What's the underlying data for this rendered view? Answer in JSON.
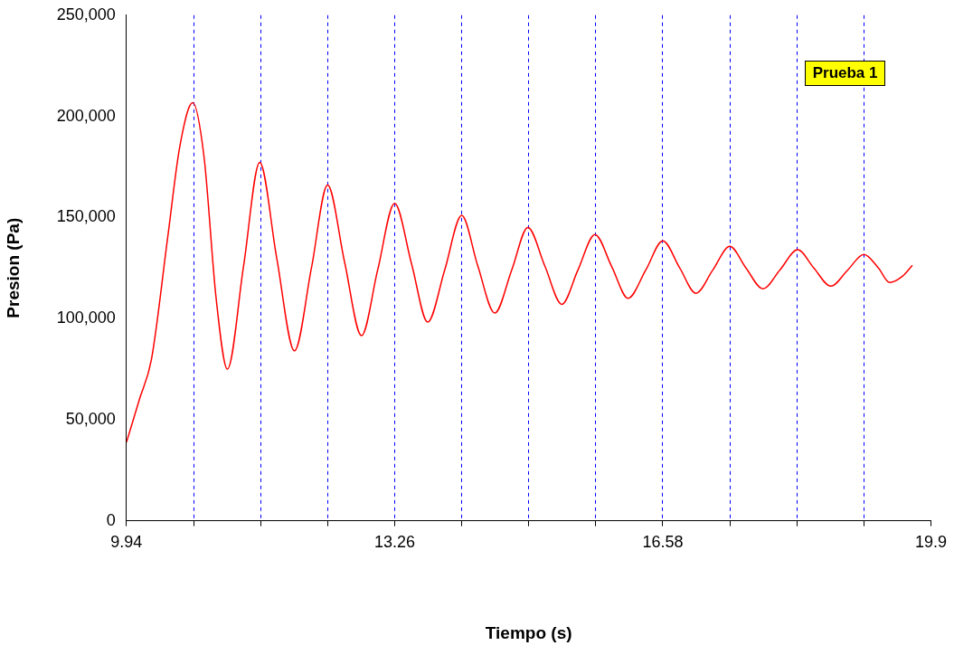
{
  "chart_data": {
    "type": "line",
    "xlabel": "Tiempo (s)",
    "ylabel": "Presion (Pa)",
    "annotations": [
      "Prueba 1"
    ],
    "xlim": [
      9.94,
      19.9
    ],
    "xticks": [
      9.94,
      {
        "value": 10.77,
        "label": null
      },
      {
        "value": 11.6,
        "label": null
      },
      {
        "value": 12.43,
        "label": null
      },
      13.26,
      {
        "value": 14.09,
        "label": null
      },
      {
        "value": 14.92,
        "label": null
      },
      {
        "value": 15.75,
        "label": null
      },
      16.58,
      {
        "value": 17.41,
        "label": null
      },
      {
        "value": 18.24,
        "label": null
      },
      {
        "value": 19.07,
        "label": null
      },
      19.9
    ],
    "ylim": [
      0,
      250000
    ],
    "yticks": [
      {
        "value": 0,
        "label": "0"
      },
      {
        "value": 50000,
        "label": "50,000"
      },
      {
        "value": 100000,
        "label": "100,000"
      },
      {
        "value": 150000,
        "label": "150,000"
      },
      {
        "value": 200000,
        "label": "200,000"
      },
      {
        "value": 250000,
        "label": "250,000"
      }
    ],
    "grid": "x",
    "legend": false,
    "marker": "none",
    "line_style": "solid",
    "series": [
      {
        "color": "#ff0000",
        "x": [
          9.94,
          10.1,
          10.25,
          10.45,
          10.6,
          10.76,
          10.9,
          11.05,
          11.19,
          11.39,
          11.59,
          11.8,
          12.02,
          12.23,
          12.43,
          12.64,
          12.85,
          13.05,
          13.26,
          13.47,
          13.67,
          13.88,
          14.09,
          14.29,
          14.5,
          14.71,
          14.91,
          15.12,
          15.33,
          15.53,
          15.74,
          15.95,
          16.15,
          16.37,
          16.58,
          16.79,
          16.99,
          17.2,
          17.41,
          17.61,
          17.82,
          18.03,
          18.25,
          18.45,
          18.66,
          18.87,
          19.07,
          19.25,
          19.39,
          19.55,
          19.67
        ],
        "values": [
          38800,
          60000,
          80000,
          140000,
          185000,
          206700,
          180000,
          110000,
          75000,
          126000,
          177200,
          130000,
          84000,
          125000,
          166000,
          128000,
          91500,
          124000,
          157000,
          127000,
          98200,
          124000,
          151000,
          126000,
          102700,
          124000,
          145000,
          126000,
          107000,
          124000,
          141500,
          125500,
          110000,
          124000,
          138400,
          125000,
          112500,
          124000,
          135700,
          125000,
          114700,
          124000,
          134000,
          125000,
          116000,
          124000,
          131700,
          125000,
          117800,
          121000,
          126300
        ]
      }
    ]
  }
}
